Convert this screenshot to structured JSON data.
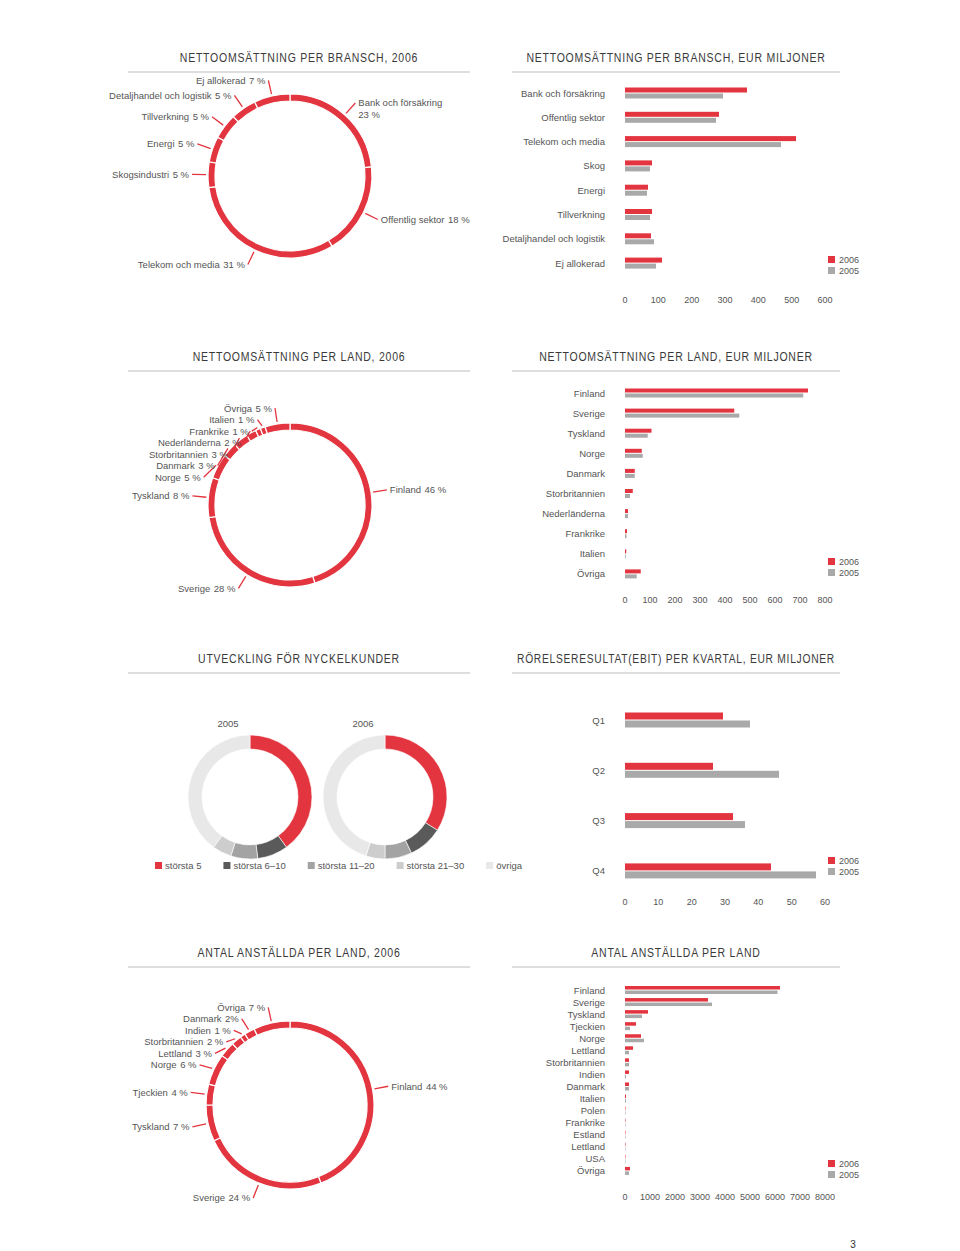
{
  "chart_data": [
    {
      "type": "donut",
      "title": "NETTOOMSÄTTNING PER BRANSCH, 2006",
      "categories": [
        "Bank och försäkring",
        "Offentlig sektor",
        "Telekom och media",
        "Skogsindustri",
        "Energi",
        "Tillverkning",
        "Detaljhandel och logistik",
        "Ej allokerad"
      ],
      "values": [
        23,
        18,
        31,
        5,
        5,
        5,
        5,
        7
      ],
      "value_labels": [
        "23 %",
        "18 %",
        "31 %",
        "5 %",
        "5 %",
        "5 %",
        "5 %",
        "7 %"
      ],
      "data_labels": true,
      "color": "#e3353f"
    },
    {
      "type": "bar",
      "orientation": "horizontal",
      "title": "NETTOOMSÄTTNING PER BRANSCH, EUR MILJONER",
      "categories": [
        "Bank och försäkring",
        "Offentlig sektor",
        "Telekom och media",
        "Skog",
        "Energi",
        "Tillverkning",
        "Detaljhandel och logistik",
        "Ej allokerad"
      ],
      "series": [
        {
          "name": "2006",
          "color": "#e3353f",
          "values": [
            366,
            282,
            513,
            81,
            69,
            81,
            78,
            111
          ]
        },
        {
          "name": "2005",
          "color": "#a9a9a9",
          "values": [
            294,
            273,
            468,
            75,
            66,
            75,
            87,
            93
          ]
        }
      ],
      "xlim": [
        0,
        600
      ],
      "xticks": [
        0,
        100,
        200,
        300,
        400,
        500,
        600
      ],
      "grid": false,
      "legend": "lower right"
    },
    {
      "type": "donut",
      "title": "NETTOOMSÄTTNING PER LAND, 2006",
      "categories": [
        "Finland",
        "Sverige",
        "Tyskland",
        "Norge",
        "Danmark",
        "Storbritannien",
        "Nederländerna",
        "Frankrike",
        "Italien",
        "Övriga"
      ],
      "values": [
        46,
        28,
        8,
        5,
        3,
        3,
        2,
        1,
        1,
        5
      ],
      "value_labels": [
        "46 %",
        "28 %",
        "8 %",
        "5 %",
        "3 %",
        "3 %",
        "2 %",
        "1 %",
        "1 %",
        "5 %"
      ],
      "data_labels": true,
      "color": "#e3353f"
    },
    {
      "type": "bar",
      "orientation": "horizontal",
      "title": "NETTOOMSÄTTNING PER LAND, EUR MILJONER",
      "categories": [
        "Finland",
        "Sverige",
        "Tyskland",
        "Norge",
        "Danmark",
        "Storbritannien",
        "Nederländerna",
        "Frankrike",
        "Italien",
        "Övriga"
      ],
      "series": [
        {
          "name": "2006",
          "color": "#e3353f",
          "values": [
            732,
            437,
            106,
            67,
            39,
            31,
            12,
            8,
            5,
            63
          ]
        },
        {
          "name": "2005",
          "color": "#a9a9a9",
          "values": [
            713,
            457,
            91,
            71,
            39,
            20,
            12,
            6,
            3,
            47
          ]
        }
      ],
      "xlim": [
        0,
        800
      ],
      "xticks": [
        0,
        100,
        200,
        300,
        400,
        500,
        600,
        700,
        800
      ],
      "grid": false,
      "legend": "lower right"
    },
    {
      "type": "donut",
      "title": "UTVECKLING FÖR NYCKELKUNDER",
      "categories": [
        "största 5",
        "största 6–10",
        "största 11–20",
        "största 21–30",
        "övriga"
      ],
      "colors": [
        "#e3353f",
        "#5a5a5a",
        "#a3a3a3",
        "#cdcdcd",
        "#e8e8e8"
      ],
      "series": [
        {
          "name": "2005",
          "values": [
            40,
            8,
            7,
            5,
            40
          ]
        },
        {
          "name": "2006",
          "values": [
            34,
            9,
            7,
            5,
            45
          ]
        }
      ],
      "legend": "bottom"
    },
    {
      "type": "bar",
      "orientation": "horizontal",
      "title": "RÖRELSERESULTAT(EBIT) PER KVARTAL, EUR MILJONER",
      "categories": [
        "Q1",
        "Q2",
        "Q3",
        "Q4"
      ],
      "series": [
        {
          "name": "2006",
          "color": "#e3353f",
          "values": [
            29.4,
            26.4,
            32.4,
            43.8
          ]
        },
        {
          "name": "2005",
          "color": "#a9a9a9",
          "values": [
            37.5,
            46.2,
            36,
            57.3
          ]
        }
      ],
      "xlim": [
        0,
        60
      ],
      "xticks": [
        0,
        10,
        20,
        30,
        40,
        50,
        60
      ],
      "grid": false,
      "legend": "lower right"
    },
    {
      "type": "donut",
      "title": "ANTAL ANSTÄLLDA PER LAND, 2006",
      "categories": [
        "Finland",
        "Sverige",
        "Tyskland",
        "Tjeckien",
        "Norge",
        "Lettland",
        "Storbritannien",
        "Indien",
        "Danmark",
        "Övriga"
      ],
      "values": [
        44,
        24,
        7,
        4,
        6,
        3,
        2,
        1,
        2,
        7
      ],
      "value_labels": [
        "44 %",
        "24 %",
        "7 %",
        "4 %",
        "6 %",
        "3 %",
        "2 %",
        "1 %",
        "2%",
        "7 %"
      ],
      "data_labels": true,
      "color": "#e3353f"
    },
    {
      "type": "bar",
      "orientation": "horizontal",
      "title": "ANTAL ANSTÄLLDA PER LAND",
      "categories": [
        "Finland",
        "Sverige",
        "Tyskland",
        "Tjeckien",
        "Norge",
        "Lettland",
        "Storbritannien",
        "Indien",
        "Danmark",
        "Italien",
        "Polen",
        "Frankrike",
        "Estland",
        "Lettland",
        "USA",
        "Övriga"
      ],
      "series": [
        {
          "name": "2006",
          "color": "#e3353f",
          "values": [
            6200,
            3320,
            920,
            440,
            640,
            320,
            160,
            160,
            160,
            40,
            20,
            20,
            20,
            20,
            20,
            200
          ]
        },
        {
          "name": "2005",
          "color": "#a9a9a9",
          "values": [
            6100,
            3480,
            680,
            200,
            760,
            160,
            160,
            40,
            160,
            40,
            20,
            20,
            20,
            20,
            20,
            160
          ]
        }
      ],
      "xlim": [
        0,
        8000
      ],
      "xticks": [
        0,
        1000,
        2000,
        3000,
        4000,
        5000,
        6000,
        7000,
        8000
      ],
      "grid": false,
      "legend": "lower right"
    }
  ],
  "footer": {
    "page_number": 3
  }
}
